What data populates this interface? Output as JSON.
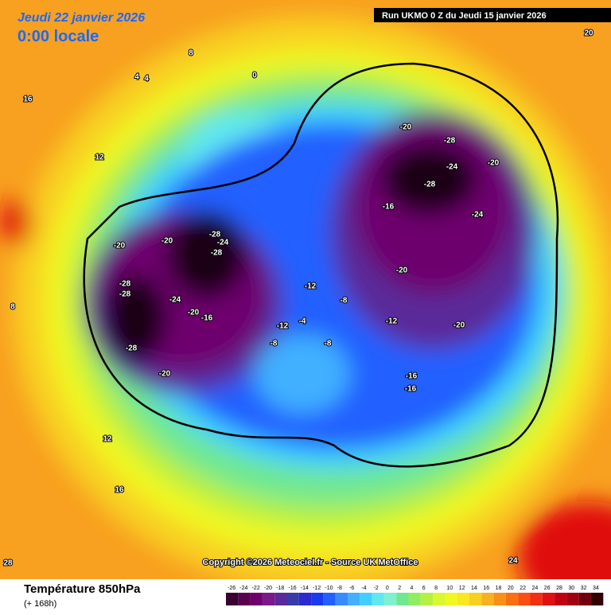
{
  "header": {
    "valid_date": "Jeudi 22 janvier 2026",
    "valid_time": "0:00 locale",
    "run": "Run UKMO 0 Z du Jeudi 15 janvier 2026"
  },
  "copyright": "Copyright ©2026 Meteociel.fr - Source UK MetOffice",
  "footer": {
    "title": "Température 850hPa",
    "lead": "(+ 168h)"
  },
  "colorbar": {
    "ticks": [
      -26,
      -24,
      -22,
      -20,
      -18,
      -16,
      -14,
      -12,
      -10,
      -8,
      -6,
      -4,
      -2,
      0,
      2,
      4,
      6,
      8,
      10,
      12,
      14,
      16,
      18,
      20,
      22,
      24,
      26,
      28,
      30,
      32,
      34
    ],
    "colors": [
      "#3a0030",
      "#5a0050",
      "#6e006e",
      "#7a1a8a",
      "#5a2a9a",
      "#3a3aa8",
      "#2a2ad0",
      "#1a3af0",
      "#2060ff",
      "#3a8aff",
      "#40b0ff",
      "#40d0ff",
      "#60e8f0",
      "#80f0d0",
      "#70e890",
      "#90ee60",
      "#b8f040",
      "#d8f830",
      "#f0f820",
      "#f8e820",
      "#f8d020",
      "#f8b020",
      "#f89018",
      "#f87010",
      "#f85010",
      "#f03010",
      "#e01010",
      "#c00010",
      "#a00010",
      "#700010",
      "#300000"
    ]
  },
  "map_labels": [
    "-28",
    "-24",
    "-28",
    "-20",
    "-28",
    "-28",
    "-24",
    "-20",
    "-16",
    "-28",
    "-20",
    "-20",
    "-28",
    "-24",
    "-28",
    "-20",
    "-24",
    "-20",
    "-20",
    "-16",
    "-12",
    "-8",
    "-12",
    "-8",
    "-4",
    "0",
    "4",
    "8",
    "12",
    "16",
    "20",
    "24",
    "28",
    "4",
    "8",
    "12",
    "16",
    "-16",
    "-16",
    "-20",
    "-12",
    "-8"
  ]
}
